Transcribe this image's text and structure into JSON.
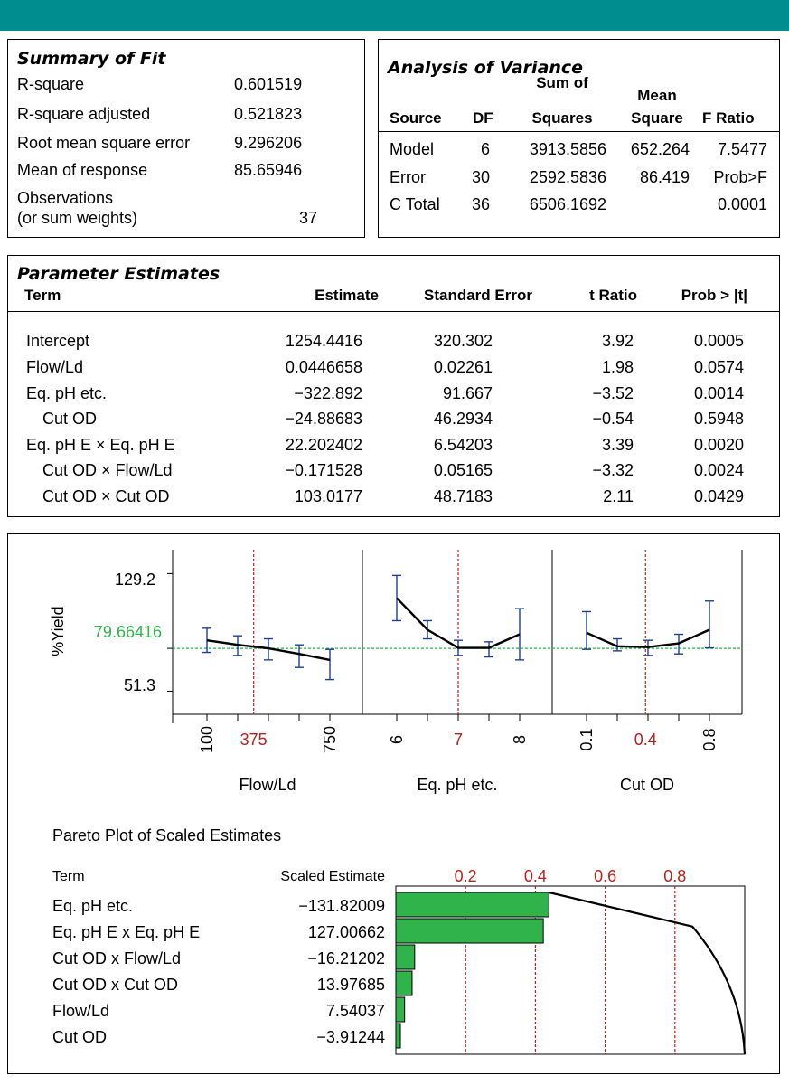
{
  "summary_of_fit": {
    "title": "Summary of Fit",
    "rows": [
      {
        "label": "R-square",
        "value": "0.601519"
      },
      {
        "label": "R-square adjusted",
        "value": "0.521823"
      },
      {
        "label": "Root mean square error",
        "value": "9.296206"
      },
      {
        "label": "Mean of response",
        "value": "85.65946"
      },
      {
        "label": "Observations",
        "label2": "(or sum weights)",
        "value": "37"
      }
    ]
  },
  "anova": {
    "title": "Analysis of Variance",
    "headers": {
      "source": "Source",
      "df": "DF",
      "ss1": "Sum of",
      "ss2": "Squares",
      "ms1": "Mean",
      "ms2": "Square",
      "f": "F Ratio"
    },
    "rows": [
      {
        "source": "Model",
        "df": "6",
        "ss": "3913.5856",
        "ms": "652.264",
        "f": "7.5477"
      },
      {
        "source": "Error",
        "df": "30",
        "ss": "2592.5836",
        "ms": "86.419",
        "f": "Prob>F"
      },
      {
        "source": "C Total",
        "df": "36",
        "ss": "6506.1692",
        "ms": "",
        "f": "0.0001"
      }
    ]
  },
  "parameter_estimates": {
    "title": "Parameter Estimates",
    "headers": {
      "term": "Term",
      "estimate": "Estimate",
      "se": "Standard Error",
      "t": "t Ratio",
      "p": "Prob > |t|"
    },
    "rows": [
      {
        "term": "Intercept",
        "estimate": "1254.4416",
        "se": "320.302",
        "t": "3.92",
        "p": "0.0005"
      },
      {
        "term": "Flow/Ld",
        "estimate": "0.0446658",
        "se": "0.02261",
        "t": "1.98",
        "p": "0.0574"
      },
      {
        "term": "Eq. pH etc.",
        "estimate": "−322.892",
        "se": "91.667",
        "t": "−3.52",
        "p": "0.0014"
      },
      {
        "term": "Cut OD",
        "estimate": "−24.88683",
        "se": "46.2934",
        "t": "−0.54",
        "p": "0.5948"
      },
      {
        "term": "Eq. pH E × Eq. pH E",
        "estimate": "22.202402",
        "se": "6.54203",
        "t": "3.39",
        "p": "0.0020"
      },
      {
        "term": "Cut OD × Flow/Ld",
        "estimate": "−0.171528",
        "se": "0.05165",
        "t": "−3.32",
        "p": "0.0024"
      },
      {
        "term": "Cut OD × Cut OD",
        "estimate": "103.0177",
        "se": "48.7183",
        "t": "2.11",
        "p": "0.0429"
      }
    ]
  },
  "colors": {
    "teal": "#008d8f",
    "red": "#b5231d",
    "green": "#2fb34a",
    "errbar": "#1f3f8f",
    "refline": "#2fb34a"
  },
  "chart_data": [
    {
      "type": "line",
      "chart": "prediction_profiler",
      "ylabel": "%Yield",
      "yticks": [
        "129.2",
        "51.3"
      ],
      "ytick_values": [
        129.2,
        51.3
      ],
      "current_response": "79.66416",
      "current_response_value": 79.66416,
      "ylim": [
        36,
        145
      ],
      "panels": [
        {
          "xlabel": "Flow/Ld",
          "xticks": [
            "100",
            "375",
            "750"
          ],
          "current_x_label": "375",
          "x": [
            0,
            0.25,
            0.5,
            0.75,
            1.0
          ],
          "x_current": 0.38,
          "y": [
            85,
            82,
            79.7,
            76,
            72
          ],
          "err_low": [
            77,
            75,
            72,
            67,
            59
          ],
          "err_high": [
            93,
            88,
            86,
            82,
            79
          ]
        },
        {
          "xlabel": "Eq. pH etc.",
          "xticks": [
            "6",
            "7",
            "8"
          ],
          "current_x_label": "7",
          "x": [
            0,
            0.25,
            0.5,
            0.75,
            1.0
          ],
          "x_current": 0.5,
          "y": [
            113,
            92,
            80,
            80,
            89
          ],
          "err_low": [
            98,
            86,
            75,
            74,
            72
          ],
          "err_high": [
            128,
            98,
            85,
            84,
            106
          ]
        },
        {
          "xlabel": "Cut OD",
          "xticks": [
            "0.1",
            "0.4",
            "0.8"
          ],
          "current_x_label": "0.4",
          "x": [
            0,
            0.25,
            0.5,
            0.75,
            1.0
          ],
          "x_current": 0.48,
          "y": [
            90,
            81,
            80.5,
            83,
            92
          ],
          "err_low": [
            79,
            78,
            75,
            76,
            80
          ],
          "err_high": [
            104,
            86,
            85,
            89,
            111
          ]
        }
      ]
    },
    {
      "type": "bar",
      "chart": "pareto",
      "title": "Pareto Plot of Scaled Estimates",
      "col_term": "Term",
      "col_estimate": "Scaled Estimate",
      "categories": [
        "Eq. pH etc.",
        "Eq. pH E x Eq. pH E",
        "Cut OD x Flow/Ld",
        "Cut OD x Cut OD",
        "Flow/Ld",
        "Cut OD"
      ],
      "labels": [
        "−131.82009",
        "127.00662",
        "−16.21202",
        "13.97685",
        "7.54037",
        "−3.91244"
      ],
      "values": [
        -131.82009,
        127.00662,
        -16.21202,
        13.97685,
        7.54037,
        -3.91244
      ],
      "axis_ticks": [
        "0.2",
        "0.4",
        "0.6",
        "0.8"
      ],
      "axis_tick_values": [
        0.2,
        0.4,
        0.6,
        0.8
      ],
      "cumulative_fraction": [
        0.43,
        0.85,
        0.9,
        0.95,
        0.98,
        1.0
      ]
    }
  ]
}
